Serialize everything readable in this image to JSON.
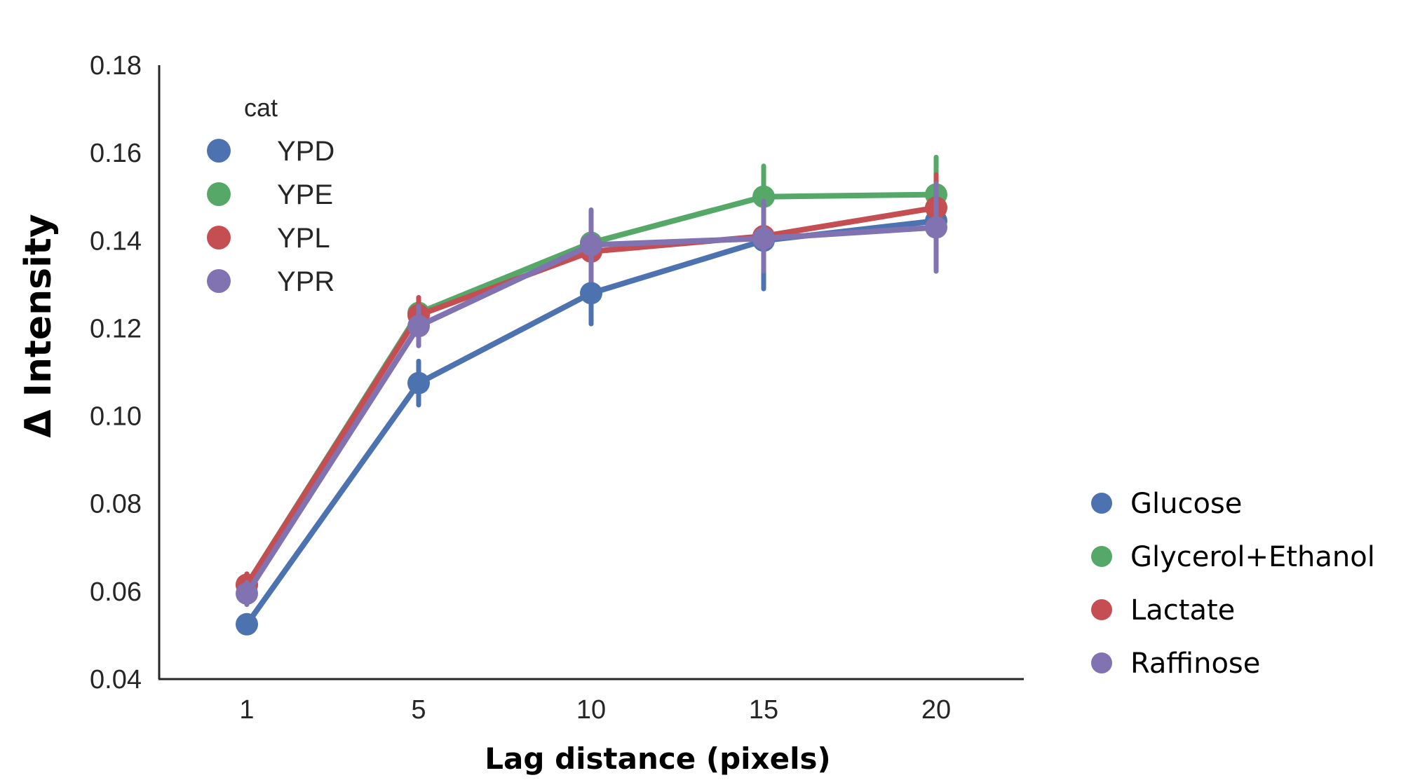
{
  "chart_data": {
    "type": "line",
    "title": "",
    "xlabel": "Lag distance (pixels)",
    "ylabel": "Δ Intensity",
    "categories": [
      "1",
      "5",
      "10",
      "15",
      "20"
    ],
    "y_ticks": [
      "0.04",
      "0.06",
      "0.08",
      "0.10",
      "0.12",
      "0.14",
      "0.16",
      "0.18"
    ],
    "ylim": [
      0.04,
      0.18
    ],
    "grid": false,
    "legend_title": "cat",
    "series": [
      {
        "name": "YPD",
        "color": "#4C72B0",
        "values": [
          0.0525,
          0.1075,
          0.128,
          0.14,
          0.1445
        ],
        "err_low": [
          0.051,
          0.1025,
          0.121,
          0.129,
          0.137
        ],
        "err_high": [
          0.054,
          0.1125,
          0.135,
          0.151,
          0.152
        ]
      },
      {
        "name": "YPE",
        "color": "#55A868",
        "values": [
          0.0615,
          0.1235,
          0.1395,
          0.15,
          0.1505
        ],
        "err_low": [
          0.059,
          0.12,
          0.133,
          0.143,
          0.142
        ],
        "err_high": [
          0.064,
          0.127,
          0.146,
          0.157,
          0.159
        ]
      },
      {
        "name": "YPL",
        "color": "#C44E52",
        "values": [
          0.0615,
          0.123,
          0.1375,
          0.141,
          0.1475
        ],
        "err_low": [
          0.059,
          0.119,
          0.131,
          0.134,
          0.14
        ],
        "err_high": [
          0.064,
          0.127,
          0.144,
          0.148,
          0.155
        ]
      },
      {
        "name": "YPR",
        "color": "#8172B2",
        "values": [
          0.0595,
          0.1205,
          0.139,
          0.1405,
          0.143
        ],
        "err_low": [
          0.057,
          0.116,
          0.131,
          0.133,
          0.133
        ],
        "err_high": [
          0.062,
          0.125,
          0.147,
          0.149,
          0.153
        ]
      }
    ],
    "legend2": [
      {
        "label": "Glucose",
        "color": "#4C72B0"
      },
      {
        "label": "Glycerol+Ethanol",
        "color": "#55A868"
      },
      {
        "label": "Lactate",
        "color": "#C44E52"
      },
      {
        "label": "Raffinose",
        "color": "#8172B2"
      }
    ]
  }
}
